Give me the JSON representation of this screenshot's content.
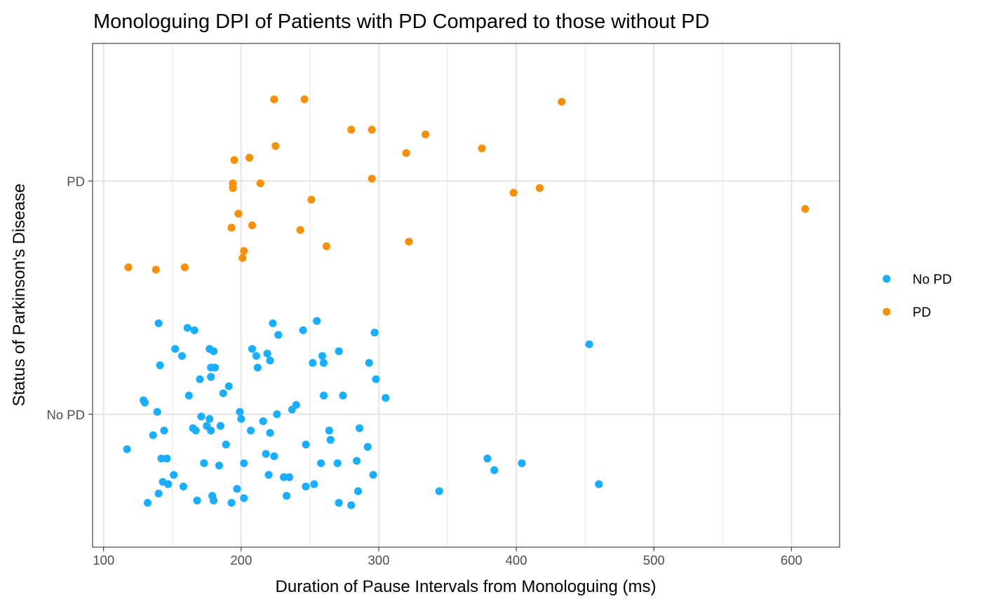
{
  "chart_data": {
    "type": "scatter",
    "title": "Monologuing DPI of Patients with PD Compared to those without PD",
    "xlabel": "Duration of Pause Intervals from Monologuing (ms)",
    "ylabel": "Status of Parkinson's Disease",
    "xlim": [
      92,
      635
    ],
    "x_ticks": [
      100,
      200,
      300,
      400,
      500,
      600
    ],
    "y_categories": [
      "No PD",
      "PD"
    ],
    "ylim": [
      0.43,
      2.59
    ],
    "grid": true,
    "legend_position": "right",
    "series": [
      {
        "name": "No PD",
        "color": "#1aaeff",
        "points": [
          [
            117,
            0.85
          ],
          [
            129,
            1.06
          ],
          [
            130,
            1.05
          ],
          [
            132,
            0.62
          ],
          [
            136,
            0.91
          ],
          [
            139,
            1.01
          ],
          [
            140,
            0.66
          ],
          [
            140,
            1.39
          ],
          [
            141,
            1.21
          ],
          [
            142,
            0.81
          ],
          [
            143,
            0.71
          ],
          [
            144,
            0.93
          ],
          [
            146,
            0.81
          ],
          [
            147,
            0.7
          ],
          [
            151,
            0.74
          ],
          [
            152,
            1.28
          ],
          [
            157,
            1.25
          ],
          [
            158,
            0.69
          ],
          [
            161,
            1.37
          ],
          [
            162,
            1.08
          ],
          [
            165,
            0.94
          ],
          [
            166,
            1.36
          ],
          [
            167,
            0.93
          ],
          [
            168,
            0.63
          ],
          [
            170,
            1.15
          ],
          [
            171,
            0.99
          ],
          [
            173,
            0.79
          ],
          [
            175,
            0.95
          ],
          [
            177,
            0.98
          ],
          [
            177,
            1.28
          ],
          [
            178,
            1.16
          ],
          [
            178,
            1.2
          ],
          [
            178,
            0.93
          ],
          [
            179,
            0.65
          ],
          [
            180,
            1.27
          ],
          [
            180,
            0.63
          ],
          [
            181,
            1.2
          ],
          [
            184,
            0.78
          ],
          [
            185,
            0.95
          ],
          [
            187,
            1.09
          ],
          [
            189,
            0.87
          ],
          [
            191,
            1.12
          ],
          [
            193,
            0.62
          ],
          [
            197,
            0.68
          ],
          [
            199,
            1.01
          ],
          [
            200,
            0.98
          ],
          [
            202,
            0.79
          ],
          [
            202,
            0.64
          ],
          [
            207,
            0.93
          ],
          [
            208,
            1.28
          ],
          [
            211,
            1.25
          ],
          [
            212,
            1.2
          ],
          [
            216,
            0.97
          ],
          [
            218,
            0.83
          ],
          [
            219,
            1.26
          ],
          [
            220,
            0.74
          ],
          [
            221,
            1.23
          ],
          [
            221,
            0.92
          ],
          [
            223,
            1.39
          ],
          [
            224,
            0.82
          ],
          [
            226,
            1.0
          ],
          [
            227,
            1.34
          ],
          [
            231,
            0.73
          ],
          [
            233,
            0.65
          ],
          [
            235,
            0.73
          ],
          [
            237,
            1.02
          ],
          [
            240,
            1.04
          ],
          [
            245,
            1.36
          ],
          [
            247,
            0.87
          ],
          [
            247,
            0.69
          ],
          [
            252,
            1.22
          ],
          [
            253,
            0.7
          ],
          [
            255,
            1.4
          ],
          [
            258,
            0.79
          ],
          [
            259,
            1.25
          ],
          [
            260,
            1.22
          ],
          [
            260,
            1.08
          ],
          [
            264,
            0.93
          ],
          [
            265,
            0.89
          ],
          [
            270,
            0.79
          ],
          [
            271,
            1.27
          ],
          [
            271,
            0.62
          ],
          [
            274,
            1.08
          ],
          [
            280,
            0.61
          ],
          [
            284,
            0.8
          ],
          [
            285,
            0.67
          ],
          [
            286,
            0.94
          ],
          [
            292,
            0.86
          ],
          [
            293,
            1.22
          ],
          [
            296,
            0.74
          ],
          [
            297,
            1.35
          ],
          [
            298,
            1.15
          ],
          [
            305,
            1.07
          ],
          [
            344,
            0.67
          ],
          [
            379,
            0.81
          ],
          [
            384,
            0.76
          ],
          [
            404,
            0.79
          ],
          [
            453,
            1.3
          ],
          [
            460,
            0.7
          ]
        ]
      },
      {
        "name": "PD",
        "color": "#f7900a",
        "points": [
          [
            118,
            1.63
          ],
          [
            138,
            1.62
          ],
          [
            159,
            1.63
          ],
          [
            193,
            1.8
          ],
          [
            194,
            1.97
          ],
          [
            194,
            1.99
          ],
          [
            195,
            2.09
          ],
          [
            198,
            1.86
          ],
          [
            201,
            1.67
          ],
          [
            202,
            1.7
          ],
          [
            206,
            2.1
          ],
          [
            208,
            1.81
          ],
          [
            214,
            1.99
          ],
          [
            224,
            2.35
          ],
          [
            225,
            2.15
          ],
          [
            243,
            1.79
          ],
          [
            246,
            2.35
          ],
          [
            251,
            1.92
          ],
          [
            262,
            1.72
          ],
          [
            280,
            2.22
          ],
          [
            295,
            2.22
          ],
          [
            295,
            2.01
          ],
          [
            320,
            2.12
          ],
          [
            322,
            1.74
          ],
          [
            334,
            2.2
          ],
          [
            375,
            2.14
          ],
          [
            398,
            1.95
          ],
          [
            417,
            1.97
          ],
          [
            433,
            2.34
          ],
          [
            610,
            1.88
          ]
        ]
      }
    ]
  }
}
